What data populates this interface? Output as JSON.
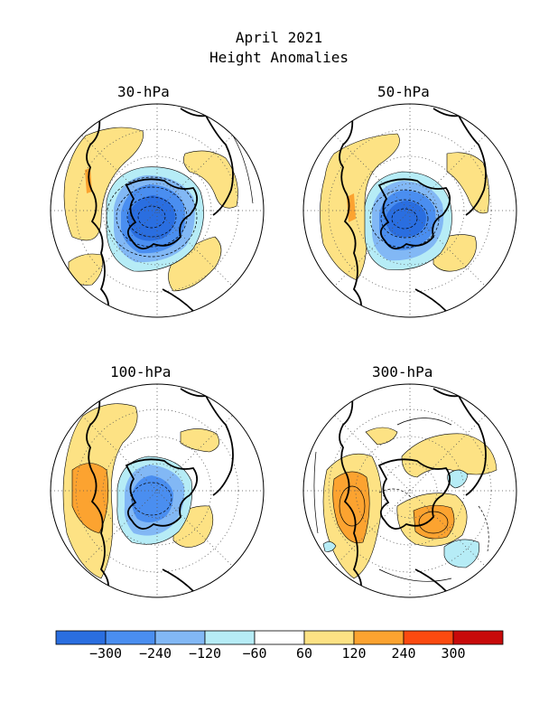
{
  "header": {
    "line1": "April 2021",
    "line2": "Height Anomalies"
  },
  "panels": [
    {
      "label": "30-hPa"
    },
    {
      "label": "50-hPa"
    },
    {
      "label": "100-hPa"
    },
    {
      "label": "300-hPa"
    }
  ],
  "colorbar": {
    "colors": [
      "#2a6ee0",
      "#4a8ef0",
      "#82b8f5",
      "#b6ecf6",
      "#ffffff",
      "#fde284",
      "#fca330",
      "#fc4a10",
      "#c80a0a"
    ],
    "tick_labels": [
      "-300",
      "-240",
      "-120",
      "-60",
      "60",
      "120",
      "240",
      "300"
    ]
  }
}
